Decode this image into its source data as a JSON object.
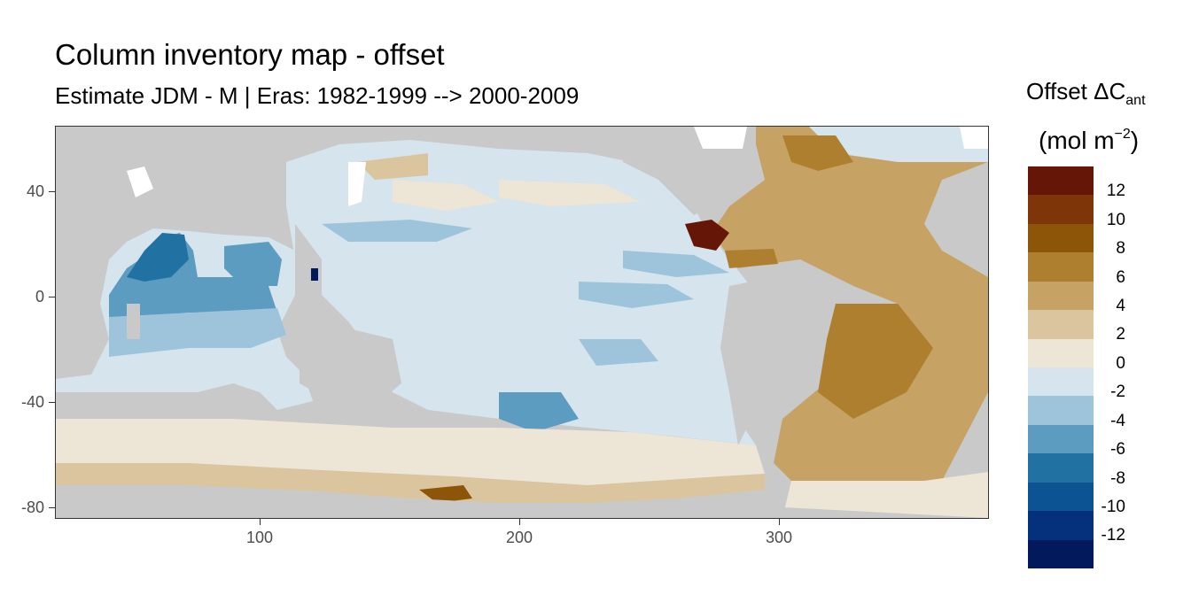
{
  "title": "Column inventory map - offset",
  "subtitle": "Estimate JDM - M | Eras: 1982-1999 --> 2000-2009",
  "legend": {
    "title_main": "Offset ΔC",
    "title_sub": "ant",
    "unit_open": "(mol m",
    "unit_sup": "−2",
    "unit_close": ")",
    "bins": [
      {
        "label": "12",
        "color": "#651606"
      },
      {
        "label": "10",
        "color": "#7e3608"
      },
      {
        "label": "8",
        "color": "#8c5508"
      },
      {
        "label": "6",
        "color": "#ae7f2e"
      },
      {
        "label": "4",
        "color": "#c6a364"
      },
      {
        "label": "2",
        "color": "#dbc59e"
      },
      {
        "label": "0",
        "color": "#ede5d5"
      },
      {
        "label": "-2",
        "color": "#d6e4ee"
      },
      {
        "label": "-4",
        "color": "#9ec4dc"
      },
      {
        "label": "-6",
        "color": "#5c9cc1"
      },
      {
        "label": "-8",
        "color": "#2171a3"
      },
      {
        "label": "-10",
        "color": "#0b5392"
      },
      {
        "label": "-12",
        "color": "#04307c"
      },
      {
        "label": "",
        "color": "#021a5c"
      }
    ]
  },
  "axes": {
    "x_ticks": [
      "100",
      "200",
      "300"
    ],
    "y_ticks": [
      "40",
      "0",
      "-40",
      "-80"
    ],
    "xlim": [
      20,
      380
    ],
    "ylim": [
      -85,
      65
    ]
  },
  "colors": {
    "land": "#c9c9c9",
    "no_data": "#ffffff"
  }
}
